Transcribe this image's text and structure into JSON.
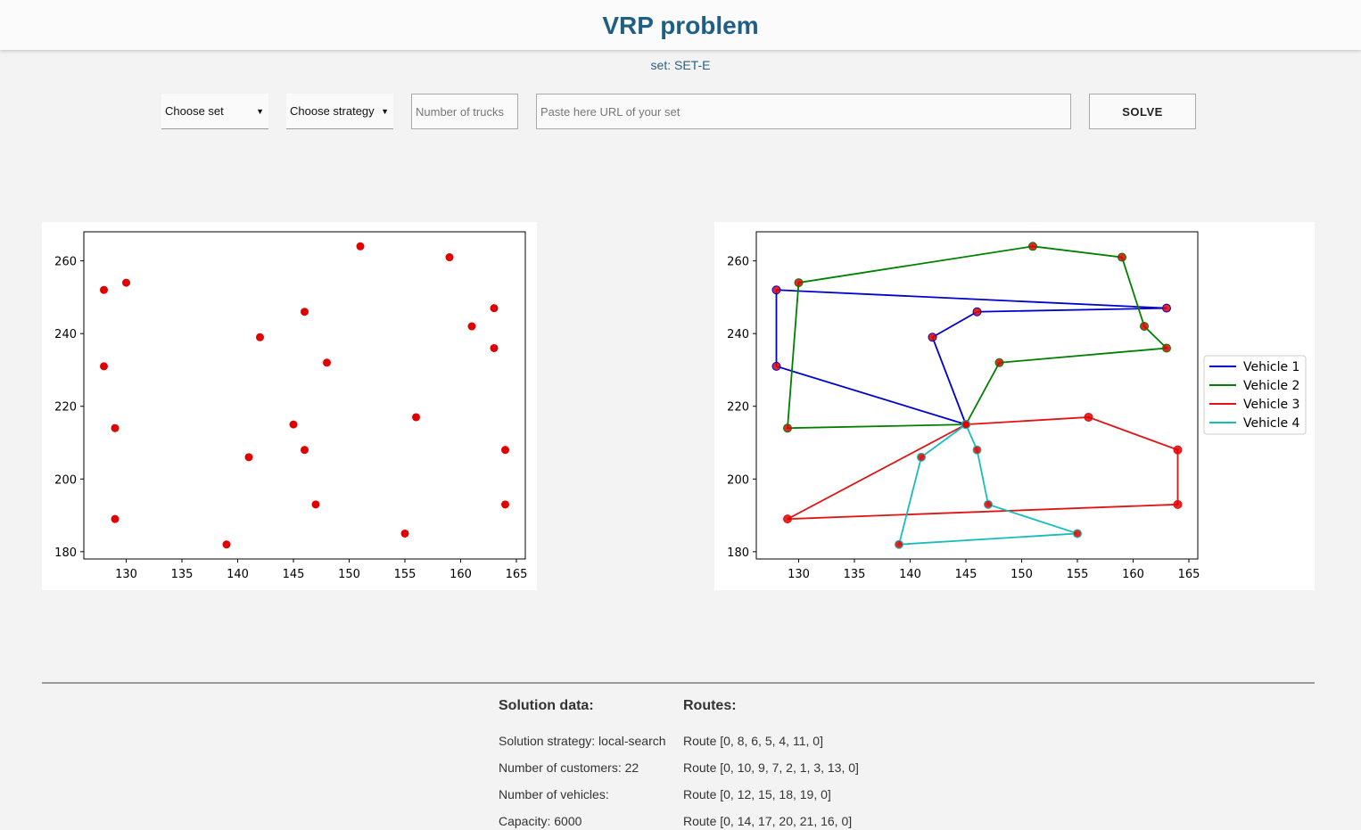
{
  "header": {
    "title": "VRP problem"
  },
  "set_label": "set: SET-E",
  "controls": {
    "set_select": "Choose set",
    "strategy_select": "Choose strategy",
    "trucks_placeholder": "Number of trucks",
    "url_placeholder": "Paste here URL of your set",
    "solve_label": "SOLVE"
  },
  "colors": {
    "title": "#1f5f86",
    "points": "#e00000",
    "vehicle_1": "#0000cc",
    "vehicle_2": "#008000",
    "vehicle_3": "#e01414",
    "vehicle_4": "#17bcbc"
  },
  "chart_data": [
    {
      "type": "scatter",
      "title": "",
      "xlabel": "",
      "ylabel": "",
      "xlim": [
        126.2,
        165.8
      ],
      "ylim": [
        178,
        268
      ],
      "xticks": [
        130,
        135,
        140,
        145,
        150,
        155,
        160,
        165
      ],
      "yticks": [
        180,
        200,
        220,
        240,
        260
      ],
      "points": [
        [
          145,
          215
        ],
        [
          151,
          264
        ],
        [
          159,
          261
        ],
        [
          130,
          254
        ],
        [
          128,
          252
        ],
        [
          163,
          247
        ],
        [
          146,
          246
        ],
        [
          161,
          242
        ],
        [
          142,
          239
        ],
        [
          163,
          236
        ],
        [
          148,
          232
        ],
        [
          128,
          231
        ],
        [
          156,
          217
        ],
        [
          129,
          214
        ],
        [
          146,
          208
        ],
        [
          164,
          208
        ],
        [
          141,
          206
        ],
        [
          147,
          193
        ],
        [
          164,
          193
        ],
        [
          129,
          189
        ],
        [
          155,
          185
        ],
        [
          139,
          182
        ]
      ]
    },
    {
      "type": "line",
      "title": "",
      "xlabel": "",
      "ylabel": "",
      "xlim": [
        126.2,
        165.8
      ],
      "ylim": [
        178,
        268
      ],
      "xticks": [
        130,
        135,
        140,
        145,
        150,
        155,
        160,
        165
      ],
      "yticks": [
        180,
        200,
        220,
        240,
        260
      ],
      "legend_position": "center-right",
      "series": [
        {
          "name": "Vehicle 1",
          "color": "#0000cc",
          "points": [
            [
              145,
              215
            ],
            [
              142,
              239
            ],
            [
              146,
              246
            ],
            [
              163,
              247
            ],
            [
              128,
              252
            ],
            [
              128,
              231
            ],
            [
              145,
              215
            ]
          ]
        },
        {
          "name": "Vehicle 2",
          "color": "#008000",
          "points": [
            [
              145,
              215
            ],
            [
              148,
              232
            ],
            [
              163,
              236
            ],
            [
              161,
              242
            ],
            [
              159,
              261
            ],
            [
              151,
              264
            ],
            [
              130,
              254
            ],
            [
              129,
              214
            ],
            [
              145,
              215
            ]
          ]
        },
        {
          "name": "Vehicle 3",
          "color": "#e01414",
          "points": [
            [
              145,
              215
            ],
            [
              156,
              217
            ],
            [
              164,
              208
            ],
            [
              164,
              193
            ],
            [
              129,
              189
            ],
            [
              145,
              215
            ]
          ]
        },
        {
          "name": "Vehicle 4",
          "color": "#17bcbc",
          "points": [
            [
              145,
              215
            ],
            [
              141,
              206
            ],
            [
              139,
              182
            ],
            [
              155,
              185
            ],
            [
              147,
              193
            ],
            [
              146,
              208
            ],
            [
              145,
              215
            ]
          ]
        }
      ]
    }
  ],
  "solution": {
    "heading": "Solution data:",
    "strategy": "Solution strategy: local-search",
    "customers": "Number of customers: 22",
    "vehicles": "Number of vehicles:",
    "capacity": "Capacity: 6000"
  },
  "routes": {
    "heading": "Routes:",
    "items": [
      "Route [0, 8, 6, 5, 4, 11, 0]",
      "Route [0, 10, 9, 7, 2, 1, 3, 13, 0]",
      "Route [0, 12, 15, 18, 19, 0]",
      "Route [0, 14, 17, 20, 21, 16, 0]"
    ]
  }
}
